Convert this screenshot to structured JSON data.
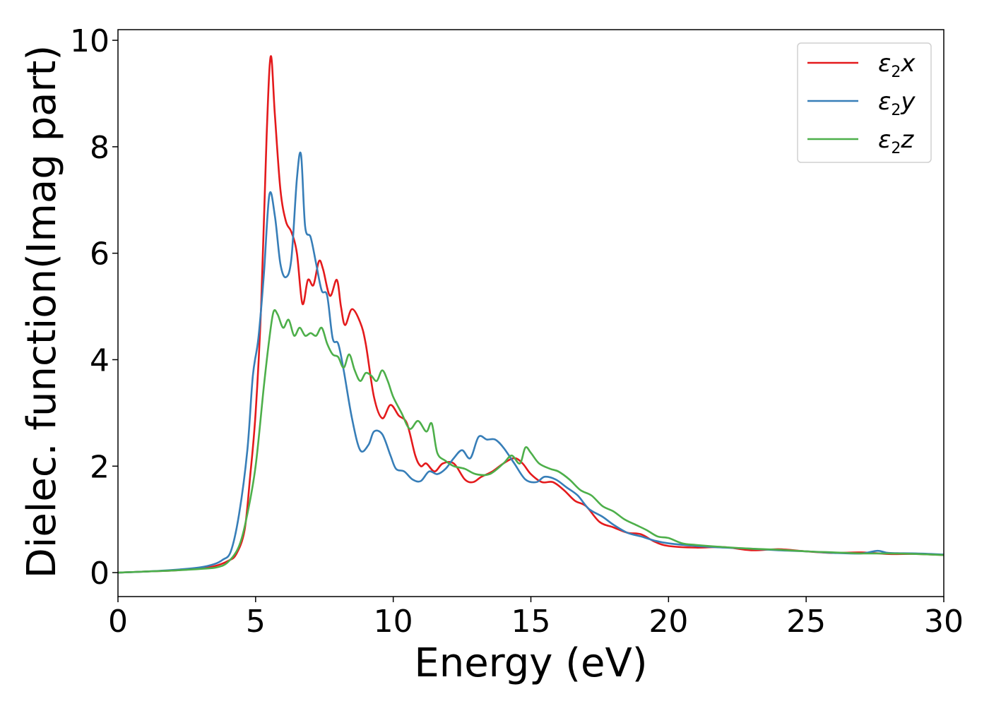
{
  "chart_data": {
    "type": "line",
    "title": "",
    "xlabel": "Energy (eV)",
    "ylabel": "Dielec. function(Imag part)",
    "xlim": [
      0,
      30
    ],
    "ylim": [
      -0.45,
      10.2
    ],
    "grid": false,
    "legend_position": "top-right",
    "x_ticks": [
      "0",
      "5",
      "10",
      "15",
      "20",
      "25",
      "30"
    ],
    "y_ticks": [
      "0",
      "2",
      "4",
      "6",
      "8",
      "10"
    ],
    "series": [
      {
        "name": "x",
        "legend": {
          "prefix": "ε",
          "sub": "2",
          "suffix": "x"
        },
        "color": "#e41a1c",
        "x": [
          0,
          1,
          2,
          3,
          3.5,
          4,
          4.3,
          4.6,
          4.8,
          5.0,
          5.2,
          5.4,
          5.55,
          5.7,
          5.9,
          6.1,
          6.3,
          6.5,
          6.7,
          6.9,
          7.1,
          7.3,
          7.45,
          7.7,
          7.95,
          8.1,
          8.25,
          8.5,
          8.8,
          9.0,
          9.3,
          9.6,
          9.9,
          10.2,
          10.5,
          10.8,
          11.0,
          11.2,
          11.5,
          11.8,
          12.2,
          12.6,
          12.9,
          13.2,
          13.6,
          14.0,
          14.4,
          14.7,
          15.0,
          15.4,
          15.8,
          16.2,
          16.6,
          17.0,
          17.5,
          18.0,
          18.5,
          19.0,
          19.5,
          20.0,
          21.0,
          22.0,
          23.0,
          24.0,
          25.0,
          26.0,
          27.0,
          28.0,
          29.0,
          30.0
        ],
        "y": [
          0.0,
          0.02,
          0.04,
          0.08,
          0.12,
          0.22,
          0.35,
          0.8,
          1.8,
          3.0,
          5.0,
          8.2,
          9.7,
          8.6,
          7.2,
          6.6,
          6.4,
          6.0,
          5.05,
          5.5,
          5.4,
          5.85,
          5.7,
          5.2,
          5.5,
          5.0,
          4.65,
          4.95,
          4.7,
          4.3,
          3.3,
          2.9,
          3.15,
          2.95,
          2.8,
          2.2,
          2.0,
          2.05,
          1.9,
          2.05,
          2.05,
          1.75,
          1.7,
          1.8,
          1.9,
          2.05,
          2.15,
          2.05,
          1.85,
          1.7,
          1.7,
          1.55,
          1.35,
          1.25,
          0.95,
          0.85,
          0.75,
          0.72,
          0.58,
          0.5,
          0.47,
          0.48,
          0.42,
          0.44,
          0.4,
          0.37,
          0.38,
          0.35,
          0.35,
          0.33
        ]
      },
      {
        "name": "y",
        "legend": {
          "prefix": "ε",
          "sub": "2",
          "suffix": "y"
        },
        "color": "#377eb8",
        "x": [
          0,
          1,
          2,
          3,
          3.5,
          3.8,
          4.1,
          4.4,
          4.7,
          4.9,
          5.1,
          5.3,
          5.5,
          5.7,
          5.9,
          6.1,
          6.3,
          6.5,
          6.65,
          6.8,
          7.0,
          7.2,
          7.4,
          7.6,
          7.8,
          8.0,
          8.2,
          8.5,
          8.8,
          9.1,
          9.3,
          9.6,
          9.9,
          10.1,
          10.4,
          10.7,
          11.0,
          11.3,
          11.6,
          11.9,
          12.2,
          12.5,
          12.8,
          13.1,
          13.4,
          13.7,
          14.0,
          14.4,
          14.8,
          15.2,
          15.5,
          15.9,
          16.3,
          16.7,
          17.1,
          17.6,
          18.0,
          18.5,
          19.0,
          19.5,
          20.0,
          21.0,
          22.0,
          23.0,
          24.0,
          25.0,
          26.0,
          27.0,
          27.6,
          28.0,
          29.0,
          30.0
        ],
        "y": [
          0.0,
          0.02,
          0.05,
          0.1,
          0.16,
          0.24,
          0.4,
          1.1,
          2.3,
          3.7,
          4.4,
          5.6,
          7.1,
          6.7,
          5.8,
          5.55,
          5.9,
          7.4,
          7.85,
          6.5,
          6.3,
          5.8,
          5.3,
          5.2,
          4.4,
          4.3,
          3.8,
          2.9,
          2.3,
          2.4,
          2.65,
          2.6,
          2.2,
          1.95,
          1.9,
          1.75,
          1.72,
          1.9,
          1.85,
          1.95,
          2.15,
          2.3,
          2.15,
          2.55,
          2.5,
          2.5,
          2.35,
          2.05,
          1.75,
          1.7,
          1.8,
          1.75,
          1.6,
          1.45,
          1.2,
          1.05,
          0.9,
          0.75,
          0.68,
          0.6,
          0.55,
          0.5,
          0.47,
          0.45,
          0.42,
          0.4,
          0.37,
          0.36,
          0.41,
          0.37,
          0.36,
          0.34
        ]
      },
      {
        "name": "z",
        "legend": {
          "prefix": "ε",
          "sub": "2",
          "suffix": "z"
        },
        "color": "#4daf4a",
        "x": [
          0,
          1,
          2,
          3,
          3.6,
          4.0,
          4.4,
          4.7,
          5.0,
          5.3,
          5.5,
          5.65,
          5.8,
          6.0,
          6.2,
          6.4,
          6.6,
          6.8,
          7.0,
          7.2,
          7.4,
          7.6,
          7.8,
          8.0,
          8.2,
          8.4,
          8.6,
          8.8,
          9.0,
          9.2,
          9.4,
          9.6,
          9.8,
          10.0,
          10.3,
          10.6,
          10.9,
          11.2,
          11.4,
          11.6,
          11.9,
          12.2,
          12.6,
          13.0,
          13.5,
          14.0,
          14.3,
          14.6,
          14.8,
          15.0,
          15.3,
          15.7,
          16.0,
          16.4,
          16.8,
          17.2,
          17.6,
          18.0,
          18.4,
          18.8,
          19.2,
          19.6,
          20.0,
          20.5,
          21.0,
          22.0,
          23.0,
          24.0,
          25.0,
          26.0,
          27.0,
          28.0,
          29.0,
          30.0
        ],
        "y": [
          0.0,
          0.02,
          0.04,
          0.07,
          0.1,
          0.2,
          0.5,
          1.1,
          2.0,
          3.5,
          4.4,
          4.9,
          4.85,
          4.6,
          4.75,
          4.45,
          4.6,
          4.45,
          4.5,
          4.45,
          4.6,
          4.3,
          4.1,
          4.05,
          3.85,
          4.1,
          3.8,
          3.6,
          3.75,
          3.7,
          3.6,
          3.8,
          3.6,
          3.3,
          3.0,
          2.7,
          2.85,
          2.65,
          2.8,
          2.25,
          2.1,
          2.0,
          1.95,
          1.85,
          1.85,
          2.05,
          2.2,
          2.05,
          2.35,
          2.25,
          2.05,
          1.95,
          1.9,
          1.75,
          1.55,
          1.45,
          1.25,
          1.15,
          1.0,
          0.9,
          0.8,
          0.68,
          0.65,
          0.55,
          0.52,
          0.48,
          0.45,
          0.43,
          0.4,
          0.38,
          0.36,
          0.36,
          0.35,
          0.33
        ]
      }
    ]
  }
}
